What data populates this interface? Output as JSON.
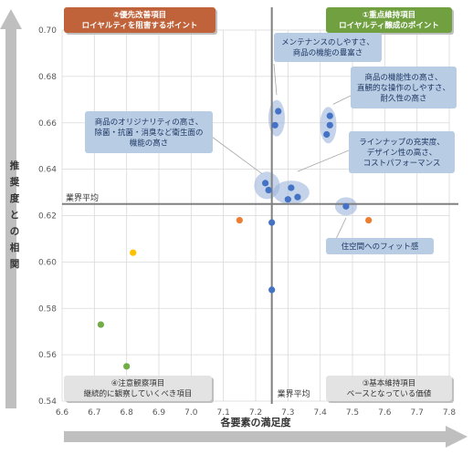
{
  "chart_data": {
    "type": "scatter",
    "xlabel": "各要素の満足度",
    "ylabel": "推奨度との相関",
    "xlim": [
      6.6,
      7.8
    ],
    "ylim": [
      0.54,
      0.7
    ],
    "x_ticks": [
      "6.6",
      "6.7",
      "6.8",
      "6.9",
      "7.0",
      "7.1",
      "7.2",
      "7.3",
      "7.4",
      "7.5",
      "7.6",
      "7.7",
      "7.8"
    ],
    "y_ticks": [
      "0.54",
      "0.56",
      "0.58",
      "0.60",
      "0.62",
      "0.64",
      "0.66",
      "0.68",
      "0.70"
    ],
    "reference_x": 7.25,
    "reference_y": 0.625,
    "reference_x_label": "業界平均",
    "reference_y_label": "業界平均",
    "grid": true,
    "points": [
      {
        "x": 7.27,
        "y": 0.665,
        "color": "#4472c4"
      },
      {
        "x": 7.26,
        "y": 0.659,
        "color": "#4472c4"
      },
      {
        "x": 7.43,
        "y": 0.663,
        "color": "#4472c4"
      },
      {
        "x": 7.43,
        "y": 0.659,
        "color": "#4472c4"
      },
      {
        "x": 7.42,
        "y": 0.655,
        "color": "#4472c4"
      },
      {
        "x": 7.23,
        "y": 0.634,
        "color": "#4472c4"
      },
      {
        "x": 7.24,
        "y": 0.631,
        "color": "#4472c4"
      },
      {
        "x": 7.31,
        "y": 0.632,
        "color": "#4472c4"
      },
      {
        "x": 7.33,
        "y": 0.628,
        "color": "#4472c4"
      },
      {
        "x": 7.3,
        "y": 0.627,
        "color": "#4472c4"
      },
      {
        "x": 7.48,
        "y": 0.624,
        "color": "#4472c4"
      },
      {
        "x": 7.25,
        "y": 0.617,
        "color": "#4472c4"
      },
      {
        "x": 7.25,
        "y": 0.588,
        "color": "#4472c4"
      },
      {
        "x": 7.15,
        "y": 0.618,
        "color": "#ed7d31"
      },
      {
        "x": 7.55,
        "y": 0.618,
        "color": "#ed7d31"
      },
      {
        "x": 6.82,
        "y": 0.604,
        "color": "#ffc000"
      },
      {
        "x": 6.72,
        "y": 0.573,
        "color": "#70ad47"
      },
      {
        "x": 6.8,
        "y": 0.555,
        "color": "#70ad47"
      }
    ],
    "quadrant_labels": [
      {
        "lines": [
          "②優先改善項目",
          "ロイヤルティを阻害するポイント"
        ],
        "fill": "#c0623a",
        "text_color": "#ffffff"
      },
      {
        "lines": [
          "①重点維持項目",
          "ロイヤルティ醸成のポイント"
        ],
        "fill": "#70a040",
        "text_color": "#ffffff"
      },
      {
        "lines": [
          "④注意観察項目",
          "継続的に観察していくべき項目"
        ],
        "fill": "#e3e3e3",
        "text_color": "#333333"
      },
      {
        "lines": [
          "③基本維持項目",
          "ベースとなっている価値"
        ],
        "fill": "#e3e3e3",
        "text_color": "#333333"
      }
    ],
    "annotations": [
      {
        "lines": [
          "メンテナンスのしやすさ、",
          "商品の機能の豊富さ"
        ]
      },
      {
        "lines": [
          "商品の機能性の高さ、",
          "直観的な操作のしやすさ、",
          "耐久性の高さ"
        ]
      },
      {
        "lines": [
          "商品のオリジナリティの高さ、",
          "除菌・抗菌・消臭など衛生面の",
          "機能の高さ"
        ]
      },
      {
        "lines": [
          "ラインナップの充実度、",
          "デザイン性の高さ、",
          "コストパフォーマンス"
        ]
      },
      {
        "lines": [
          "住空間へのフィット感"
        ]
      }
    ]
  },
  "colors": {
    "annotation_fill": "#b8cce4",
    "annotation_text": "#1f3864",
    "highlight": "#9db5dc",
    "grid": "#d9d9d9",
    "reference_line": "#808080",
    "axis_arrow": "#bfbfbf"
  }
}
